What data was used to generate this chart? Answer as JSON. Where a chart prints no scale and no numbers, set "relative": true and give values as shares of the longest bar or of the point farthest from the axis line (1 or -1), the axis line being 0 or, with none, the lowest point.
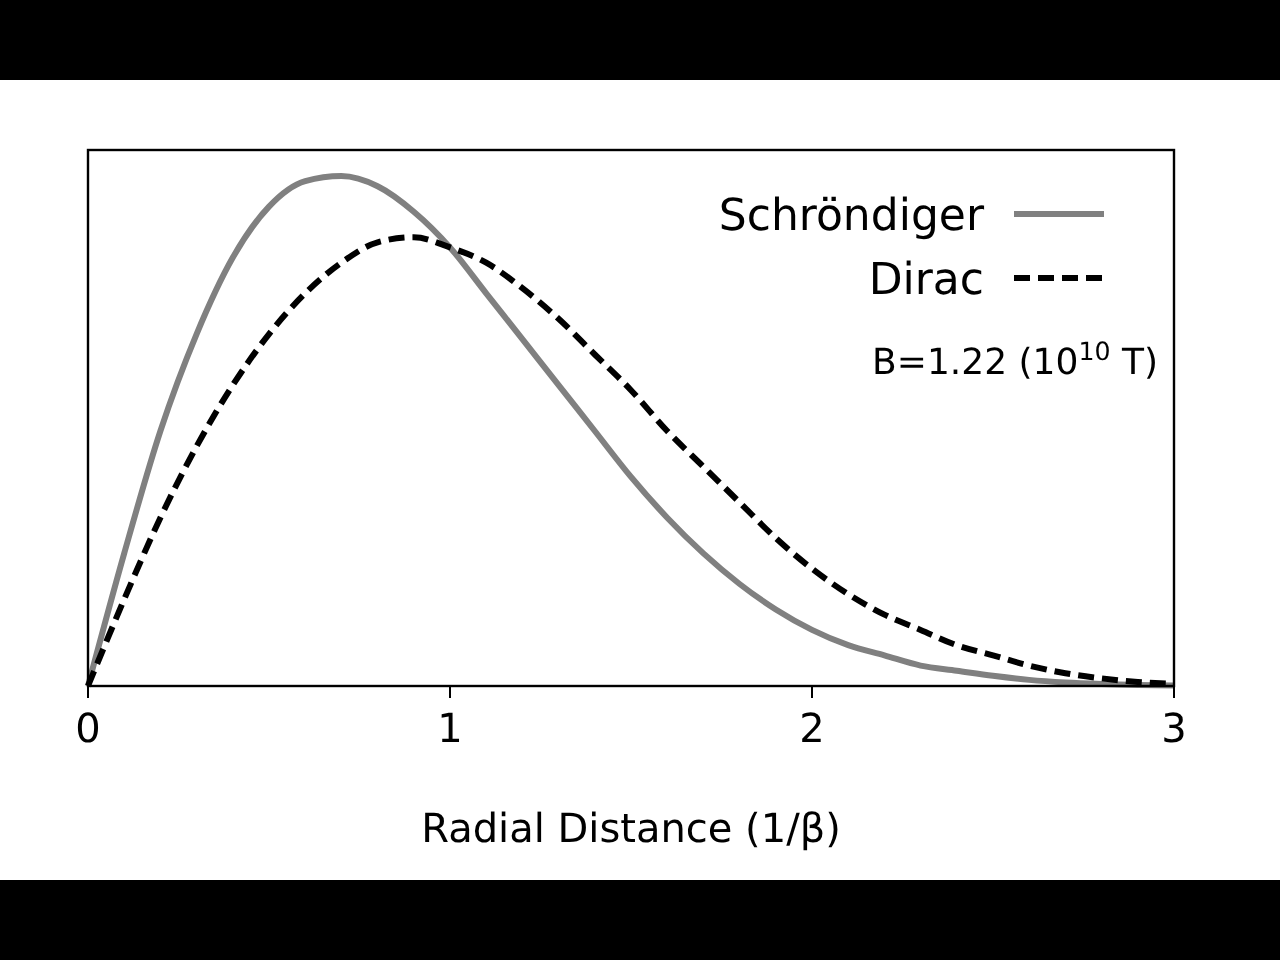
{
  "chart_data": {
    "type": "line",
    "relative": true,
    "xlabel": "Radial Distance (1/β)",
    "xlim": [
      0,
      3
    ],
    "xticks": [
      0,
      1,
      2,
      3
    ],
    "legend": "top right",
    "annotations": [
      "B=1.22 (10$^{10}$ T)"
    ],
    "x": [
      0,
      0.1,
      0.2,
      0.3,
      0.4,
      0.5,
      0.6,
      0.7,
      0.8,
      0.9,
      1.0,
      1.1,
      1.2,
      1.3,
      1.4,
      1.5,
      1.6,
      1.7,
      1.8,
      1.9,
      2.0,
      2.1,
      2.2,
      2.3,
      2.4,
      2.5,
      2.6,
      2.7,
      2.8,
      2.9,
      3.0
    ],
    "series": [
      {
        "name": "Schröndiger",
        "color": "#808080",
        "line_style": "solid",
        "values": [
          0,
          0.26,
          0.5,
          0.69,
          0.84,
          0.94,
          0.99,
          1.0,
          0.98,
          0.93,
          0.86,
          0.77,
          0.68,
          0.59,
          0.5,
          0.41,
          0.33,
          0.26,
          0.2,
          0.15,
          0.11,
          0.08,
          0.06,
          0.04,
          0.03,
          0.02,
          0.012,
          0.007,
          0.004,
          0.002,
          0.001
        ]
      },
      {
        "name": "Dirac",
        "color": "#000000",
        "line_style": "dashed",
        "values": [
          0,
          0.17,
          0.33,
          0.47,
          0.59,
          0.69,
          0.77,
          0.83,
          0.87,
          0.88,
          0.86,
          0.83,
          0.78,
          0.72,
          0.65,
          0.58,
          0.5,
          0.43,
          0.36,
          0.29,
          0.23,
          0.18,
          0.14,
          0.11,
          0.08,
          0.06,
          0.04,
          0.025,
          0.015,
          0.008,
          0.004
        ]
      }
    ]
  }
}
